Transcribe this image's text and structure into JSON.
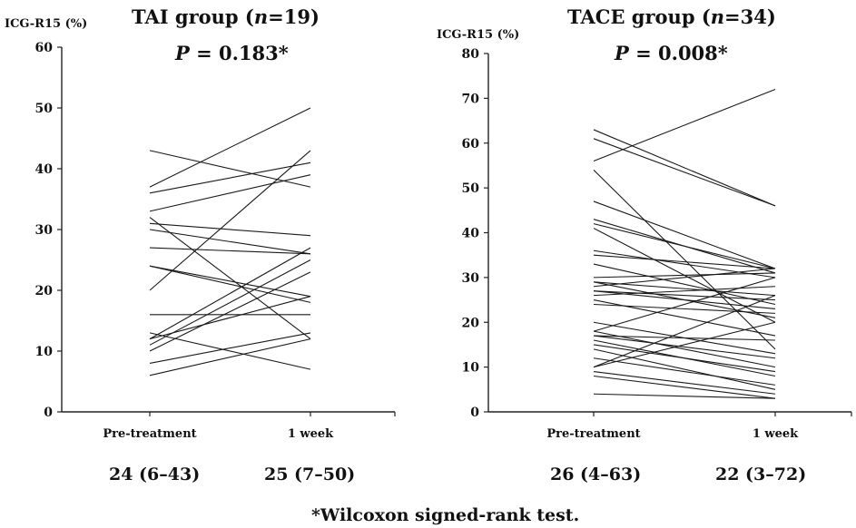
{
  "chart_data": [
    {
      "type": "line",
      "title_prefix": "TAI group (",
      "title_n": "n",
      "title_suffix": "=19)",
      "p_label": "P",
      "p_value": " = 0.183*",
      "ylabel": "ICG-R15 (%)",
      "ylim": [
        0,
        60
      ],
      "yticks": [
        0,
        10,
        20,
        30,
        40,
        50,
        60
      ],
      "categories": [
        "Pre-treatment",
        "1 week"
      ],
      "medians": [
        "24 (6–43)",
        "25 (7–50)"
      ],
      "pairs": [
        [
          43,
          37
        ],
        [
          37,
          50
        ],
        [
          36,
          41
        ],
        [
          33,
          39
        ],
        [
          32,
          12
        ],
        [
          31,
          29
        ],
        [
          30,
          26
        ],
        [
          27,
          26
        ],
        [
          24,
          18
        ],
        [
          24,
          19
        ],
        [
          20,
          43
        ],
        [
          16,
          16
        ],
        [
          13,
          7
        ],
        [
          12,
          27
        ],
        [
          12,
          19
        ],
        [
          11,
          25
        ],
        [
          10,
          23
        ],
        [
          8,
          13
        ],
        [
          6,
          12
        ]
      ]
    },
    {
      "type": "line",
      "title_prefix": "TACE group (",
      "title_n": "n",
      "title_suffix": "=34)",
      "p_label": "P",
      "p_value": " = 0.008*",
      "ylabel": "ICG-R15 (%)",
      "ylim": [
        0,
        80
      ],
      "yticks": [
        0,
        10,
        20,
        30,
        40,
        50,
        60,
        70,
        80
      ],
      "categories": [
        "Pre-treatment",
        "1 week"
      ],
      "medians": [
        "26 (4–63)",
        "22 (3–72)"
      ],
      "pairs": [
        [
          63,
          46
        ],
        [
          61,
          46
        ],
        [
          56,
          72
        ],
        [
          54,
          14
        ],
        [
          47,
          32
        ],
        [
          43,
          31
        ],
        [
          42,
          32
        ],
        [
          41,
          20
        ],
        [
          36,
          30
        ],
        [
          35,
          32
        ],
        [
          33,
          24
        ],
        [
          30,
          31
        ],
        [
          29,
          26
        ],
        [
          29,
          21
        ],
        [
          28,
          32
        ],
        [
          27,
          25
        ],
        [
          27,
          23
        ],
        [
          26,
          28
        ],
        [
          25,
          17
        ],
        [
          24,
          22
        ],
        [
          20,
          13
        ],
        [
          18,
          30
        ],
        [
          18,
          10
        ],
        [
          17,
          16
        ],
        [
          17,
          12
        ],
        [
          16,
          8
        ],
        [
          15,
          9
        ],
        [
          14,
          5
        ],
        [
          12,
          6
        ],
        [
          10,
          26
        ],
        [
          10,
          20
        ],
        [
          9,
          4
        ],
        [
          8,
          3
        ],
        [
          4,
          3
        ]
      ]
    }
  ],
  "footnote": "*Wilcoxon signed-rank test."
}
